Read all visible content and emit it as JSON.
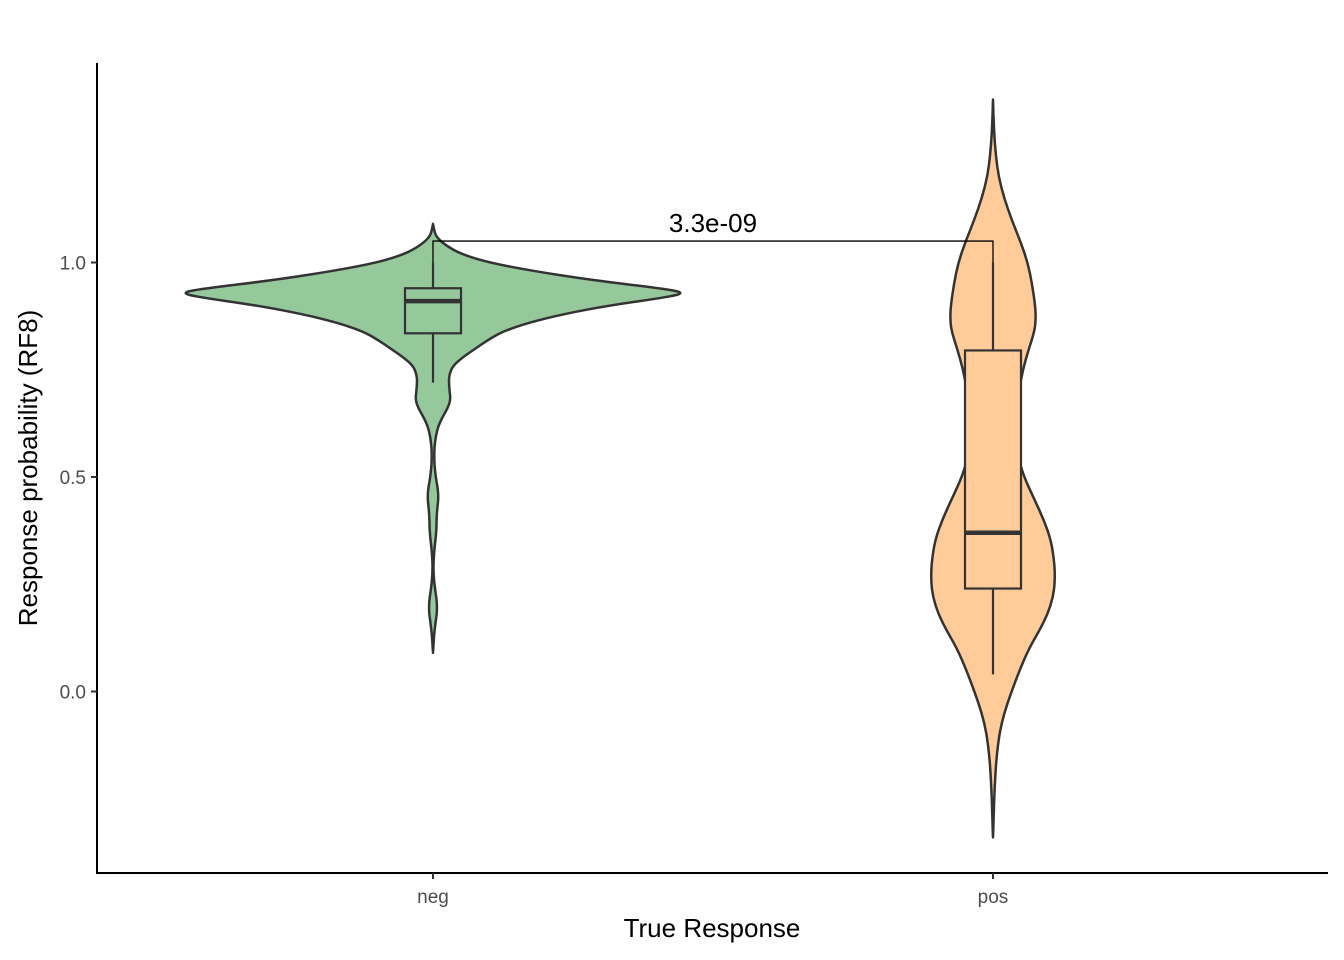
{
  "chart_data": {
    "type": "violin",
    "xlabel": "True Response",
    "ylabel": "Response probability (RF8)",
    "categories": [
      "neg",
      "pos"
    ],
    "ylim": [
      -0.42,
      1.45
    ],
    "y_ticks": [
      0.0,
      0.5,
      1.0
    ],
    "y_tick_labels": [
      "0.0",
      "0.5",
      "1.0"
    ],
    "grid": false,
    "legend": "none",
    "groups": [
      {
        "category": "neg",
        "fill": "#95c89b",
        "box": {
          "whisker_low": 0.72,
          "q1": 0.835,
          "median": 0.91,
          "q3": 0.94,
          "whisker_high": 1.0
        },
        "density": [
          [
            1.09,
            0.0
          ],
          [
            1.08,
            0.003
          ],
          [
            1.06,
            0.012
          ],
          [
            1.04,
            0.05
          ],
          [
            1.02,
            0.11
          ],
          [
            1.0,
            0.22
          ],
          [
            0.98,
            0.4
          ],
          [
            0.96,
            0.62
          ],
          [
            0.94,
            0.9
          ],
          [
            0.93,
            1.0
          ],
          [
            0.92,
            0.94
          ],
          [
            0.9,
            0.7
          ],
          [
            0.88,
            0.52
          ],
          [
            0.86,
            0.38
          ],
          [
            0.84,
            0.28
          ],
          [
            0.82,
            0.22
          ],
          [
            0.8,
            0.17
          ],
          [
            0.78,
            0.12
          ],
          [
            0.76,
            0.08
          ],
          [
            0.74,
            0.065
          ],
          [
            0.72,
            0.063
          ],
          [
            0.7,
            0.066
          ],
          [
            0.68,
            0.07
          ],
          [
            0.66,
            0.058
          ],
          [
            0.64,
            0.038
          ],
          [
            0.62,
            0.022
          ],
          [
            0.6,
            0.013
          ],
          [
            0.58,
            0.008
          ],
          [
            0.56,
            0.005
          ],
          [
            0.54,
            0.005
          ],
          [
            0.52,
            0.007
          ],
          [
            0.5,
            0.011
          ],
          [
            0.48,
            0.017
          ],
          [
            0.46,
            0.021
          ],
          [
            0.44,
            0.02
          ],
          [
            0.42,
            0.016
          ],
          [
            0.4,
            0.014
          ],
          [
            0.38,
            0.014
          ],
          [
            0.36,
            0.011
          ],
          [
            0.34,
            0.007
          ],
          [
            0.32,
            0.004
          ],
          [
            0.3,
            0.002
          ],
          [
            0.28,
            0.002
          ],
          [
            0.26,
            0.004
          ],
          [
            0.24,
            0.008
          ],
          [
            0.22,
            0.013
          ],
          [
            0.2,
            0.016
          ],
          [
            0.18,
            0.015
          ],
          [
            0.16,
            0.01
          ],
          [
            0.14,
            0.006
          ],
          [
            0.12,
            0.003
          ],
          [
            0.1,
            0.001
          ],
          [
            0.09,
            0.0
          ]
        ]
      },
      {
        "category": "pos",
        "fill": "#ffcc99",
        "box": {
          "whisker_low": 0.04,
          "q1": 0.24,
          "median": 0.37,
          "q3": 0.795,
          "whisker_high": 1.0
        },
        "density": [
          [
            1.38,
            0.0
          ],
          [
            1.35,
            0.005
          ],
          [
            1.3,
            0.02
          ],
          [
            1.25,
            0.045
          ],
          [
            1.2,
            0.09
          ],
          [
            1.15,
            0.18
          ],
          [
            1.1,
            0.3
          ],
          [
            1.05,
            0.44
          ],
          [
            1.0,
            0.56
          ],
          [
            0.95,
            0.63
          ],
          [
            0.9,
            0.68
          ],
          [
            0.87,
            0.69
          ],
          [
            0.84,
            0.67
          ],
          [
            0.8,
            0.58
          ],
          [
            0.75,
            0.48
          ],
          [
            0.7,
            0.42
          ],
          [
            0.65,
            0.38
          ],
          [
            0.6,
            0.37
          ],
          [
            0.55,
            0.4
          ],
          [
            0.5,
            0.5
          ],
          [
            0.45,
            0.66
          ],
          [
            0.4,
            0.82
          ],
          [
            0.35,
            0.94
          ],
          [
            0.3,
            0.99
          ],
          [
            0.26,
            1.0
          ],
          [
            0.22,
            0.97
          ],
          [
            0.18,
            0.88
          ],
          [
            0.14,
            0.74
          ],
          [
            0.1,
            0.58
          ],
          [
            0.05,
            0.43
          ],
          [
            0.0,
            0.3
          ],
          [
            -0.05,
            0.18
          ],
          [
            -0.1,
            0.1
          ],
          [
            -0.15,
            0.06
          ],
          [
            -0.2,
            0.035
          ],
          [
            -0.25,
            0.02
          ],
          [
            -0.3,
            0.01
          ],
          [
            -0.34,
            0.0
          ]
        ]
      }
    ],
    "comparison": {
      "label": "3.3e-09",
      "from": "neg",
      "to": "pos",
      "y": 1.05,
      "y_end": 1.0
    }
  }
}
